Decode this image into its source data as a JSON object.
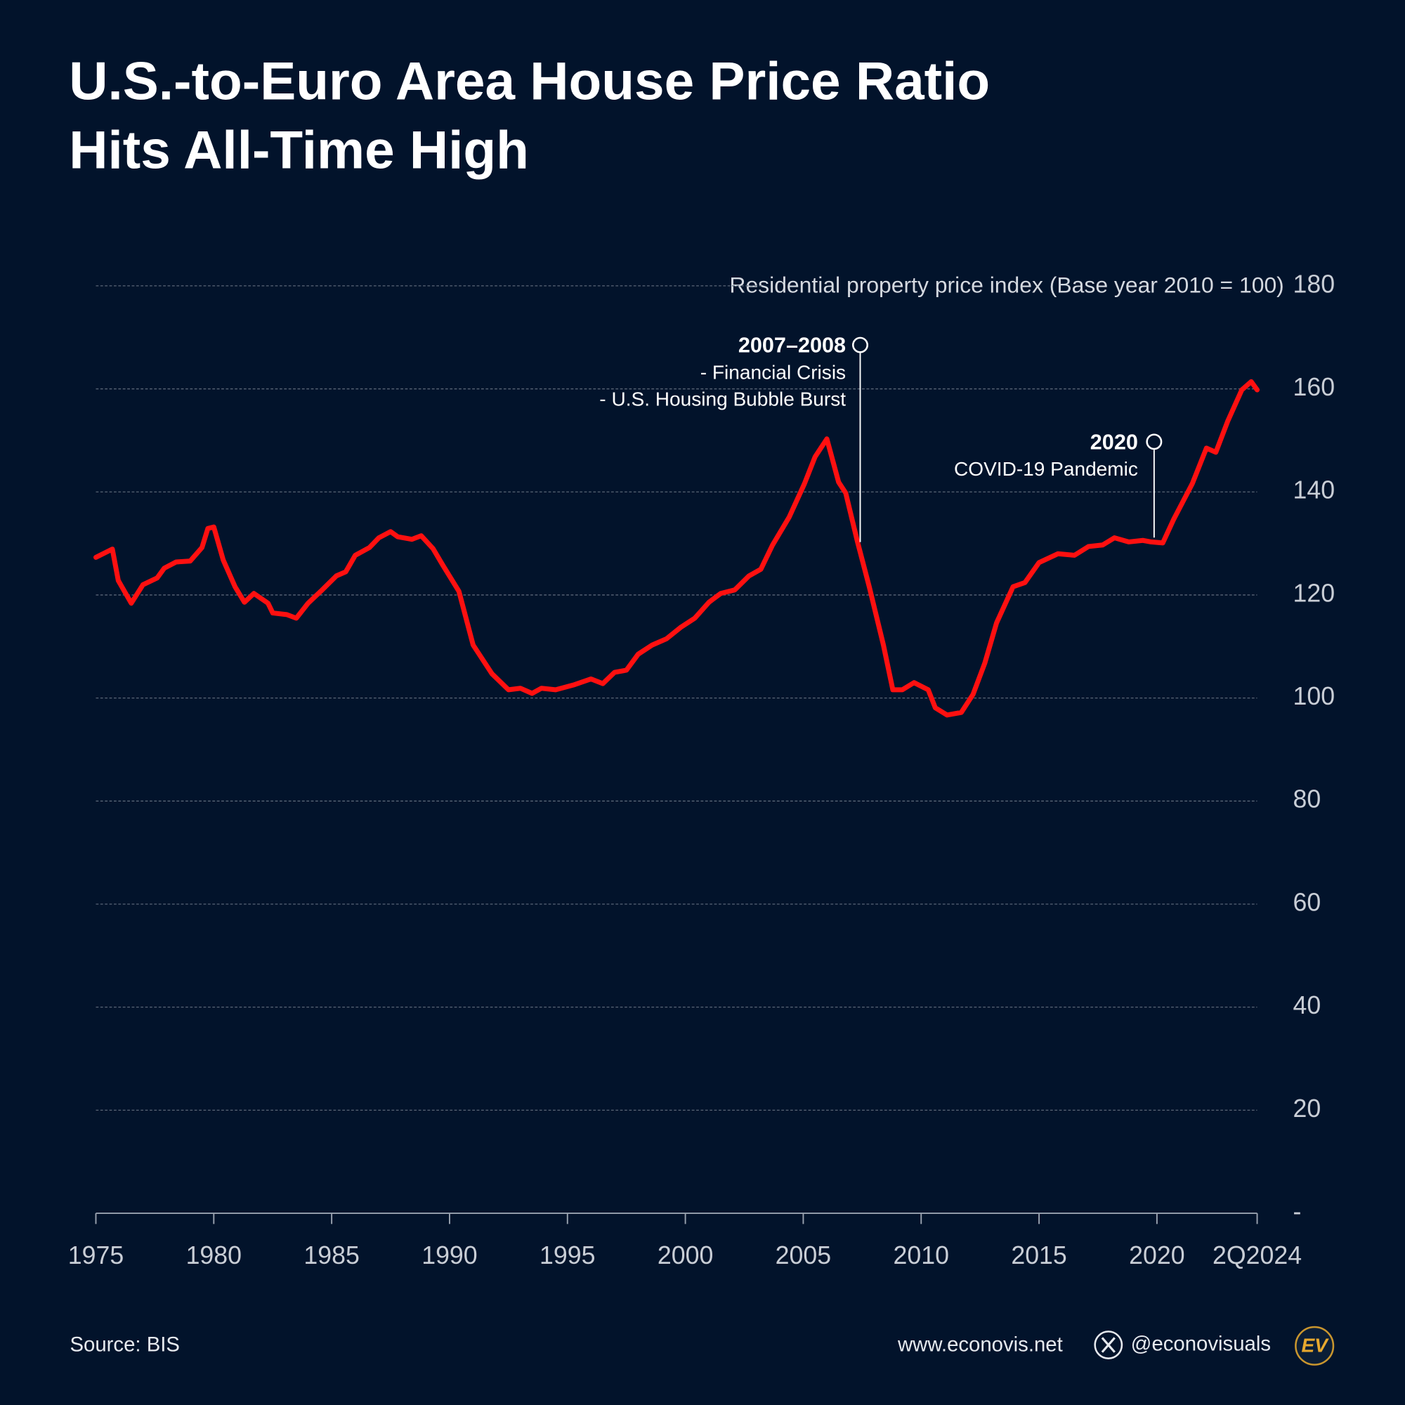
{
  "chart_data": {
    "type": "line",
    "title": [
      "U.S.-to-Euro Area House Price Ratio",
      "Hits All-Time High"
    ],
    "y_label": "Residential property price index (Base year 2010 = 100)",
    "color": "#ff1010",
    "x": [
      1975.0,
      1975.7,
      1975.95,
      1976.5,
      1977.0,
      1977.6,
      1977.9,
      1978.4,
      1979.0,
      1979.5,
      1979.75,
      1980.0,
      1980.4,
      1980.9,
      1981.3,
      1981.7,
      1982.3,
      1982.5,
      1983.1,
      1983.5,
      1984.0,
      1984.6,
      1985.2,
      1985.6,
      1986.0,
      1986.6,
      1987.0,
      1987.5,
      1987.8,
      1988.4,
      1988.8,
      1989.3,
      1989.7,
      1990.4,
      1991.0,
      1991.8,
      1992.5,
      1993.0,
      1993.5,
      1993.9,
      1994.5,
      1995.3,
      1996.0,
      1996.5,
      1997.0,
      1997.5,
      1998.0,
      1998.6,
      1999.2,
      1999.8,
      2000.4,
      2001.0,
      2001.5,
      2002.1,
      2002.7,
      2003.2,
      2003.7,
      2004.4,
      2005.05,
      2005.5,
      2006.0,
      2006.5,
      2006.8,
      2007.3,
      2007.8,
      2008.4,
      2008.8,
      2009.2,
      2009.7,
      2010.3,
      2010.6,
      2011.1,
      2011.7,
      2012.2,
      2012.7,
      2013.2,
      2013.9,
      2014.4,
      2015.0,
      2015.8,
      2016.5,
      2017.1,
      2017.7,
      2018.2,
      2018.8,
      2019.4,
      2019.75,
      2020.25,
      2020.7,
      2021.5,
      2022.1,
      2022.5,
      2023.0,
      2023.6,
      2024.0,
      2024.25
    ],
    "values": [
      127.3,
      128.9,
      122.8,
      118.4,
      122,
      123.3,
      125.2,
      126.4,
      126.6,
      129.2,
      132.9,
      133.2,
      126.8,
      121.6,
      118.6,
      120.3,
      118.4,
      116.5,
      116.2,
      115.5,
      118.4,
      121,
      123.7,
      124.5,
      127.7,
      129.2,
      131.1,
      132.3,
      131.3,
      130.8,
      131.5,
      129,
      125.9,
      120.7,
      110.3,
      104.7,
      101.6,
      101.9,
      100.9,
      101.9,
      101.6,
      102.6,
      103.7,
      102.8,
      105,
      105.4,
      108.5,
      110.3,
      111.5,
      113.7,
      115.5,
      118.6,
      120.3,
      121,
      123.7,
      125,
      129.7,
      135.1,
      141.6,
      146.8,
      150.3,
      141.9,
      139.8,
      130.3,
      121.6,
      110.3,
      101.6,
      101.6,
      103,
      101.6,
      98.1,
      96.7,
      97.2,
      100.7,
      106.8,
      114.6,
      121.6,
      122.4,
      126.3,
      128,
      127.7,
      129.4,
      129.7,
      131.1,
      130.3,
      130.6,
      130.3,
      130.1,
      134.6,
      141.6,
      148.5,
      147.7,
      153.7,
      159.8,
      161.4,
      159.8
    ],
    "xlim": [
      1975,
      2024.25
    ],
    "xticks": [
      1975,
      1980,
      1985,
      1990,
      1995,
      2000,
      2005,
      2010,
      2015,
      2020,
      {
        "value": 2024.25,
        "label": "2Q2024"
      }
    ],
    "ylim": [
      0,
      180
    ],
    "yticks": [
      {
        "value": 0,
        "label": "-"
      },
      20,
      40,
      60,
      80,
      100,
      120,
      140,
      160,
      180
    ],
    "grid": true,
    "annotations": [
      {
        "title": "2007–2008",
        "lines": [
          "- Financial Crisis",
          "- U.S. Housing Bubble Burst"
        ]
      },
      {
        "title": "2020",
        "lines": [
          "COVID-19 Pandemic"
        ]
      }
    ],
    "source": "Source: BIS",
    "website": "www.econovis.net",
    "handle": "@econovisuals",
    "logo": "EV"
  }
}
